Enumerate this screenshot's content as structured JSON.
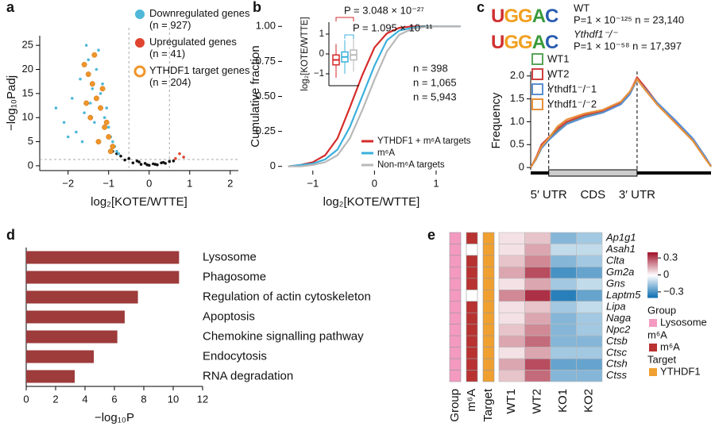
{
  "chart_data": [
    {
      "type": "scatter",
      "panel_label": "a",
      "xlabel": "log₂[KOTE/WTTE]",
      "ylabel": "−log₁₀Padj",
      "xlim": [
        -2.7,
        2.2
      ],
      "ylim": [
        -1,
        27
      ],
      "xticks": [
        {
          "value": -2,
          "label": "−2"
        },
        {
          "value": -1,
          "label": "−1"
        },
        0,
        1,
        2
      ],
      "yticks": [
        0,
        5,
        10,
        15,
        20,
        25
      ],
      "vlines": [
        -0.5,
        0.5
      ],
      "hline": 1.3,
      "series": [
        {
          "color": "#111111",
          "x": [
            -0.9,
            -0.7,
            -0.5,
            -0.3,
            -0.1,
            0.1,
            0.3,
            0.5,
            -0.6,
            -0.4,
            -0.2,
            0,
            0.2,
            0.4,
            -0.8,
            0.6,
            0.15,
            -0.25,
            -0.05,
            0.35
          ],
          "values": [
            3,
            2,
            1.5,
            1,
            0.5,
            0.4,
            0.6,
            0.9,
            1.2,
            0.6,
            0.3,
            0.1,
            0.2,
            0.5,
            2.5,
            1,
            0.3,
            0.8,
            0.2,
            0.7
          ]
        },
        {
          "name": "Downregulated genes (n = 927)",
          "color": "#4fb8d8",
          "x": [
            -2.3,
            -2.1,
            -1.9,
            -1.8,
            -1.7,
            -1.6,
            -1.5,
            -1.4,
            -1.3,
            -1.2,
            -1.1,
            -1.0,
            -0.95,
            -0.9,
            -0.85,
            -1.25,
            -1.45,
            -1.65,
            -1.05,
            -0.8,
            -1.15,
            -1.35,
            -2.0,
            -1.55,
            -0.75
          ],
          "values": [
            12,
            9,
            14,
            7,
            18,
            11,
            22,
            16,
            20,
            15,
            10,
            8,
            6,
            5,
            4,
            24,
            13,
            5,
            12,
            3,
            17,
            9,
            6,
            25,
            2.5
          ]
        },
        {
          "name": "Upregulated genes (n = 41)",
          "color": "#e0442f",
          "x": [
            0.75,
            0.85,
            0.65
          ],
          "values": [
            2.5,
            1.8,
            1.5
          ]
        },
        {
          "name": "YTHDF1 target genes (n = 204)",
          "color": "#f0952a",
          "marker": "ring",
          "x": [
            -1.6,
            -1.5,
            -1.4,
            -1.3,
            -1.2,
            -1.1,
            -1.0,
            -0.9,
            -1.35,
            -1.45,
            -1.25,
            -1.15,
            -1.05,
            -0.95,
            -1.55
          ],
          "values": [
            21,
            19,
            17,
            14,
            12,
            8,
            6,
            4,
            23,
            10,
            5,
            16,
            9,
            3,
            13
          ]
        }
      ]
    },
    {
      "type": "line",
      "panel_label": "b",
      "xlabel": "log₂[KOTE/WTTE]",
      "ylabel": "Cumulative fraction",
      "xlim": [
        -1.5,
        1.4
      ],
      "ylim": [
        -0.03,
        1.03
      ],
      "xticks": [
        {
          "value": -1,
          "label": "−1"
        },
        0,
        1
      ],
      "yticks": [
        0,
        0.25,
        {
          "value": 0.5,
          "label": "0.50"
        },
        0.75,
        {
          "value": 1,
          "label": "1.00"
        }
      ],
      "legend": "lower right",
      "x": [
        -1.4,
        -1.2,
        -1.0,
        -0.8,
        -0.6,
        -0.4,
        -0.2,
        0,
        0.2,
        0.4,
        0.6,
        0.8,
        1.0,
        1.2,
        1.4
      ],
      "series": [
        {
          "name": "YTHDF1 + m⁶A targets",
          "color": "#d62a2a",
          "annotation": "n = 398",
          "values": [
            0,
            0.01,
            0.03,
            0.08,
            0.2,
            0.42,
            0.65,
            0.85,
            0.95,
            0.99,
            1,
            1,
            1,
            1,
            1
          ]
        },
        {
          "name": "m⁶A",
          "color": "#3bb0dc",
          "annotation": "n = 1,065",
          "values": [
            0,
            0.01,
            0.02,
            0.05,
            0.12,
            0.28,
            0.5,
            0.72,
            0.9,
            0.97,
            0.99,
            1,
            1,
            1,
            1
          ]
        },
        {
          "name": "Non-m⁶A targets",
          "color": "#b8b8b8",
          "annotation": "n = 5,943",
          "values": [
            0,
            0,
            0.01,
            0.03,
            0.08,
            0.2,
            0.4,
            0.62,
            0.82,
            0.94,
            0.98,
            0.995,
            1,
            1,
            1
          ]
        }
      ],
      "inset": {
        "ylabel": "log₂[KOTE/WTTE]",
        "ylim": [
          -1.6,
          1.6
        ],
        "yticks": [
          {
            "value": -1,
            "label": "−1"
          },
          0,
          1
        ],
        "boxes": [
          {
            "color": "#d62a2a",
            "whislo": -1.2,
            "q1": -0.55,
            "med": -0.3,
            "q3": -0.05,
            "whishi": 0.5
          },
          {
            "color": "#3bb0dc",
            "whislo": -1.0,
            "q1": -0.4,
            "med": -0.15,
            "q3": 0.1,
            "whishi": 0.7
          },
          {
            "color": "#b8b8b8",
            "whislo": -0.9,
            "q1": -0.3,
            "med": -0.05,
            "q3": 0.2,
            "whishi": 0.8
          }
        ],
        "annotations": [
          {
            "text": "P = 3.048 × 10⁻²⁷",
            "color": "#d62a2a"
          },
          {
            "text": "P = 1.095 × 10⁻¹¹",
            "color": "#3bb0dc"
          }
        ]
      }
    },
    {
      "type": "line",
      "panel_label": "c",
      "ylabel": "Frequency",
      "xlim": [
        0,
        1
      ],
      "ylim": [
        -0.05,
        2.1
      ],
      "yticks": [
        0,
        0.5,
        {
          "value": 1,
          "label": "1.0"
        },
        1.5,
        {
          "value": 2,
          "label": "2.0"
        }
      ],
      "vlines": [
        0.1,
        0.59
      ],
      "regions": [
        "5′ UTR",
        "CDS",
        "3′ UTR"
      ],
      "motifs": [
        {
          "logo": "UGGAC",
          "label": "WT",
          "stats": "P=1 × 10⁻¹²⁵ n = 23,140"
        },
        {
          "logo": "UGGAC",
          "label": "Ythdf1⁻/⁻",
          "stats": "P=1 × 10⁻⁵⁸ n = 17,397"
        }
      ],
      "legend": "upper left",
      "x": [
        0,
        0.03,
        0.06,
        0.1,
        0.15,
        0.2,
        0.3,
        0.4,
        0.5,
        0.55,
        0.59,
        0.63,
        0.7,
        0.8,
        0.9,
        0.97,
        1
      ],
      "series": [
        {
          "name": "WT1",
          "color": "#5aa55a",
          "values": [
            0,
            0.2,
            0.45,
            0.62,
            0.8,
            0.97,
            1.12,
            1.22,
            1.4,
            1.62,
            1.95,
            1.75,
            1.4,
            1.0,
            0.6,
            0.2,
            0.02
          ]
        },
        {
          "name": "WT2",
          "color": "#d04040",
          "values": [
            0,
            0.22,
            0.5,
            0.66,
            0.85,
            1.0,
            1.15,
            1.24,
            1.42,
            1.65,
            1.97,
            1.78,
            1.42,
            1.02,
            0.62,
            0.22,
            0.03
          ]
        },
        {
          "name": "Ythdf1⁻/⁻1",
          "color": "#5a8fd0",
          "values": [
            0,
            0.18,
            0.42,
            0.6,
            0.78,
            0.95,
            1.1,
            1.2,
            1.38,
            1.6,
            1.92,
            1.74,
            1.42,
            1.04,
            0.63,
            0.22,
            0.03
          ]
        },
        {
          "name": "Ythdf1⁻/⁻2",
          "color": "#e8913a",
          "values": [
            0,
            0.2,
            0.46,
            0.64,
            0.9,
            1.05,
            1.18,
            1.26,
            1.44,
            1.66,
            1.93,
            1.72,
            1.38,
            0.98,
            0.58,
            0.18,
            0.02
          ]
        }
      ]
    },
    {
      "type": "bar",
      "orientation": "horizontal",
      "panel_label": "d",
      "xlabel": "−log₁₀P",
      "xlim": [
        0,
        12
      ],
      "xticks": [
        0,
        2,
        4,
        6,
        8,
        10,
        12
      ],
      "color": "#9e3b3b",
      "categories": [
        "Lysosome",
        "Phagosome",
        "Regulation of actin cytoskeleton",
        "Apoptosis",
        "Chemokine signalling pathway",
        "Endocytosis",
        "RNA degradation"
      ],
      "values": [
        10.4,
        10.4,
        7.6,
        6.7,
        6.2,
        4.6,
        3.3
      ]
    },
    {
      "type": "heatmap",
      "panel_label": "e",
      "rows": [
        "Ap1g1",
        "Asah1",
        "Clta",
        "Gm2a",
        "Gns",
        "Laptm5",
        "Lipa",
        "Naga",
        "Npc2",
        "Ctsb",
        "Ctsc",
        "Ctsh",
        "Ctss"
      ],
      "columns": [
        "WT1",
        "WT2",
        "KO1",
        "KO2"
      ],
      "values": [
        [
          0.05,
          0.1,
          -0.2,
          -0.15
        ],
        [
          0.05,
          0.15,
          -0.1,
          -0.1
        ],
        [
          0.1,
          0.2,
          -0.2,
          -0.15
        ],
        [
          0.15,
          0.3,
          -0.3,
          -0.25
        ],
        [
          0.05,
          0.15,
          -0.15,
          -0.1
        ],
        [
          0.2,
          0.35,
          -0.35,
          -0.25
        ],
        [
          0.05,
          0.1,
          -0.15,
          -0.1
        ],
        [
          0.05,
          0.15,
          -0.2,
          -0.15
        ],
        [
          0.1,
          0.2,
          -0.2,
          -0.15
        ],
        [
          0.15,
          0.25,
          -0.2,
          -0.2
        ],
        [
          0.05,
          0.15,
          -0.15,
          -0.15
        ],
        [
          0.15,
          0.3,
          -0.25,
          -0.25
        ],
        [
          0.1,
          0.25,
          -0.2,
          -0.2
        ]
      ],
      "low_color": "#0a6db0",
      "high_color": "#a0122b",
      "colorbar": {
        "lim": [
          -0.4,
          0.4
        ],
        "ticks": [
          0.3,
          0,
          {
            "value": -0.3,
            "label": "−0.3"
          }
        ]
      },
      "annotations": [
        {
          "name": "Group",
          "label": "Lysosome",
          "color": "#f49ac1",
          "present": [
            true,
            true,
            true,
            true,
            true,
            true,
            true,
            true,
            true,
            true,
            true,
            true,
            true
          ]
        },
        {
          "name": "m⁶A",
          "label": "m⁶A",
          "color": "#b83232",
          "present": [
            true,
            false,
            true,
            true,
            true,
            false,
            true,
            true,
            true,
            true,
            true,
            true,
            true
          ]
        },
        {
          "name": "Target",
          "label": "YTHDF1",
          "color": "#f0a030",
          "present": [
            true,
            true,
            true,
            true,
            true,
            true,
            true,
            true,
            true,
            true,
            true,
            true,
            true
          ]
        }
      ]
    }
  ]
}
